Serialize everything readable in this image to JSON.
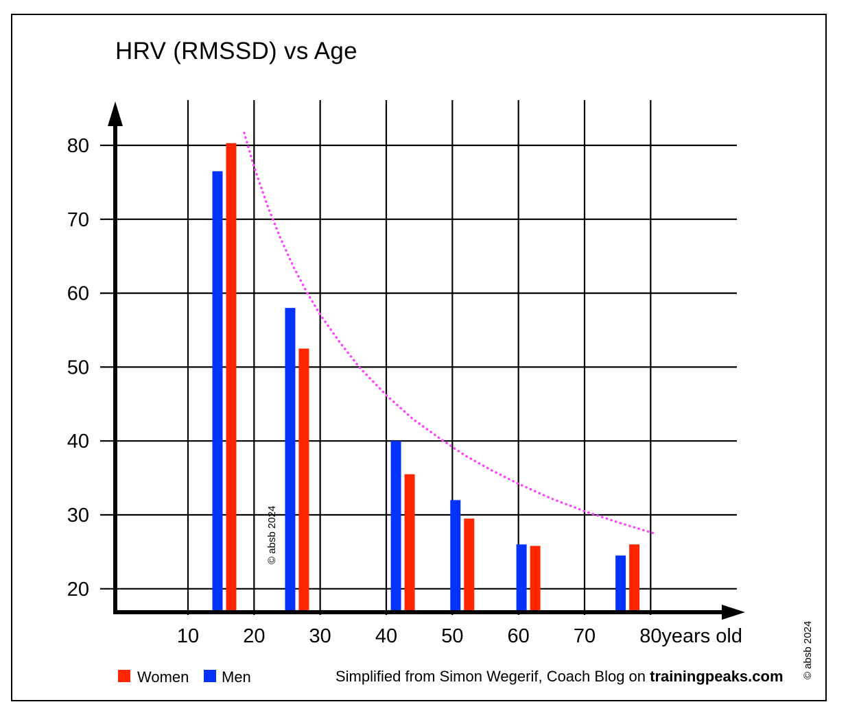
{
  "title": "HRV (RMSSD) vs Age",
  "copyright": "© absb 2024",
  "legend": {
    "women_label": "Women",
    "men_label": "Men"
  },
  "attribution": {
    "prefix": "Simplified from Simon Wegerif, Coach Blog on ",
    "bold": "trainingpeaks.com"
  },
  "colors": {
    "men_bar": "#0433ff",
    "women_bar": "#ff2600",
    "trend": "#ff42ff",
    "axis_and_grid": "#000000",
    "background": "#ffffff"
  },
  "chart_data": {
    "type": "bar",
    "title": "HRV (RMSSD) vs Age",
    "xlabel": "years old",
    "ylabel": "",
    "x_unit_label": "years old",
    "x_ticks": [
      10,
      20,
      30,
      40,
      50,
      60,
      70,
      80
    ],
    "y_ticks": [
      20,
      30,
      40,
      50,
      60,
      70,
      80
    ],
    "xlim": [
      0,
      92
    ],
    "ylim": [
      13,
      85
    ],
    "grid": true,
    "legend_position": "bottom-left",
    "group_ages": [
      15.5,
      26.5,
      42.5,
      51.5,
      61.5,
      76.5
    ],
    "series": [
      {
        "name": "Men",
        "color": "#0433ff",
        "values": [
          76.5,
          58,
          40,
          32,
          26,
          24.5
        ]
      },
      {
        "name": "Women",
        "color": "#ff2600",
        "values": [
          80.3,
          52.5,
          35.5,
          29.5,
          25.8,
          26
        ]
      }
    ],
    "trend_line": {
      "color": "#ff42ff",
      "style": "dotted",
      "points": [
        [
          18.5,
          81.7
        ],
        [
          20,
          77.1
        ],
        [
          22,
          71.9
        ],
        [
          24,
          67.4
        ],
        [
          26,
          63.5
        ],
        [
          28,
          60.1
        ],
        [
          30,
          57.1
        ],
        [
          33,
          53.3
        ],
        [
          36,
          49.9
        ],
        [
          40,
          46.2
        ],
        [
          44,
          43.0
        ],
        [
          48,
          40.4
        ],
        [
          52,
          38.0
        ],
        [
          56,
          36.0
        ],
        [
          60,
          34.2
        ],
        [
          65,
          32.2
        ],
        [
          70,
          30.5
        ],
        [
          75,
          29.0
        ],
        [
          80.5,
          27.5
        ]
      ]
    }
  }
}
